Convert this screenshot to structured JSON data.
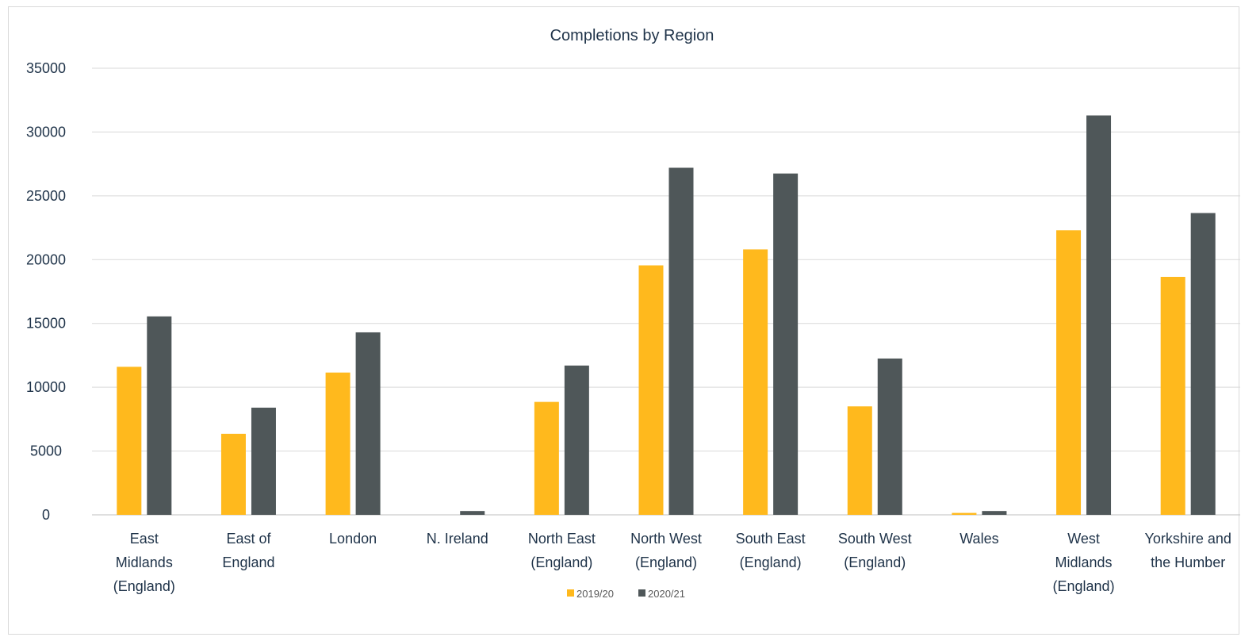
{
  "chart_data": {
    "type": "bar",
    "title": "Completions by Region",
    "xlabel": "",
    "ylabel": "",
    "ylim": [
      0,
      35000
    ],
    "yticks": [
      "0",
      "5000",
      "10000",
      "15000",
      "20000",
      "25000",
      "30000",
      "35000"
    ],
    "grid": true,
    "legend_position": "bottom",
    "categories": [
      [
        "East",
        "Midlands",
        "(England)"
      ],
      [
        "East of",
        "England"
      ],
      [
        "London"
      ],
      [
        "N. Ireland"
      ],
      [
        "North East",
        "(England)"
      ],
      [
        "North West",
        "(England)"
      ],
      [
        "South East",
        "(England)"
      ],
      [
        "South West",
        "(England)"
      ],
      [
        "Wales"
      ],
      [
        "West",
        "Midlands",
        "(England)"
      ],
      [
        "Yorkshire and",
        "the Humber"
      ]
    ],
    "series": [
      {
        "name": "2019/20",
        "color": "#ffb91d",
        "values": [
          11600,
          6350,
          11150,
          0,
          8850,
          19550,
          20800,
          8500,
          150,
          22300,
          18650
        ]
      },
      {
        "name": "2020/21",
        "color": "#4f5759",
        "values": [
          15550,
          8400,
          14300,
          300,
          11700,
          27200,
          26750,
          12250,
          300,
          31300,
          23650
        ]
      }
    ]
  }
}
